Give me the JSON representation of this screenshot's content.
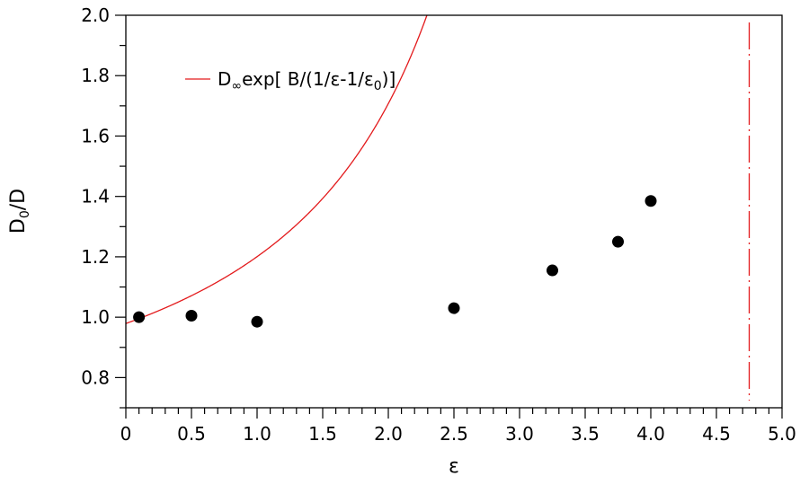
{
  "chart_data": {
    "type": "scatter",
    "xlabel": "ε",
    "ylabel": {
      "main": "D",
      "sub": "0",
      "rest": "/D"
    },
    "xlim": [
      0,
      5
    ],
    "ylim": [
      0.7,
      2.0
    ],
    "x_ticks": [
      "0",
      "0.5",
      "1.0",
      "1.5",
      "2.0",
      "2.5",
      "3.0",
      "3.5",
      "4.0",
      "4.5",
      "5.0"
    ],
    "x_tick_values": [
      0,
      0.5,
      1.0,
      1.5,
      2.0,
      2.5,
      3.0,
      3.5,
      4.0,
      4.5,
      5.0
    ],
    "y_ticks": [
      "0.8",
      "1.0",
      "1.2",
      "1.4",
      "1.6",
      "1.8",
      "2.0"
    ],
    "y_tick_values": [
      0.8,
      1.0,
      1.2,
      1.4,
      1.6,
      1.8,
      2.0
    ],
    "grid": false,
    "legend_position": "top-left",
    "legend": {
      "part1": "D",
      "sub1": "∞",
      "part2": "exp[ B/(1/ε-1/ε",
      "sub2": "0",
      "part3": ")]"
    },
    "series": [
      {
        "kind": "points",
        "color": "#000000",
        "x": [
          0.1,
          0.5,
          1.0,
          2.5,
          3.25,
          3.75,
          4.0
        ],
        "y": [
          1.0,
          1.005,
          0.985,
          1.03,
          1.155,
          1.25,
          1.385
        ]
      },
      {
        "kind": "fit",
        "color": "#e31a1c",
        "function": "D_inf*exp(B/(1/x-1/eps0))",
        "params": {
          "D_inf": 0.979,
          "B": 0.161,
          "eps0": 4.75
        }
      },
      {
        "kind": "asymptote",
        "color": "#e31a1c",
        "style": "dash-dot",
        "x": 4.75
      }
    ]
  }
}
